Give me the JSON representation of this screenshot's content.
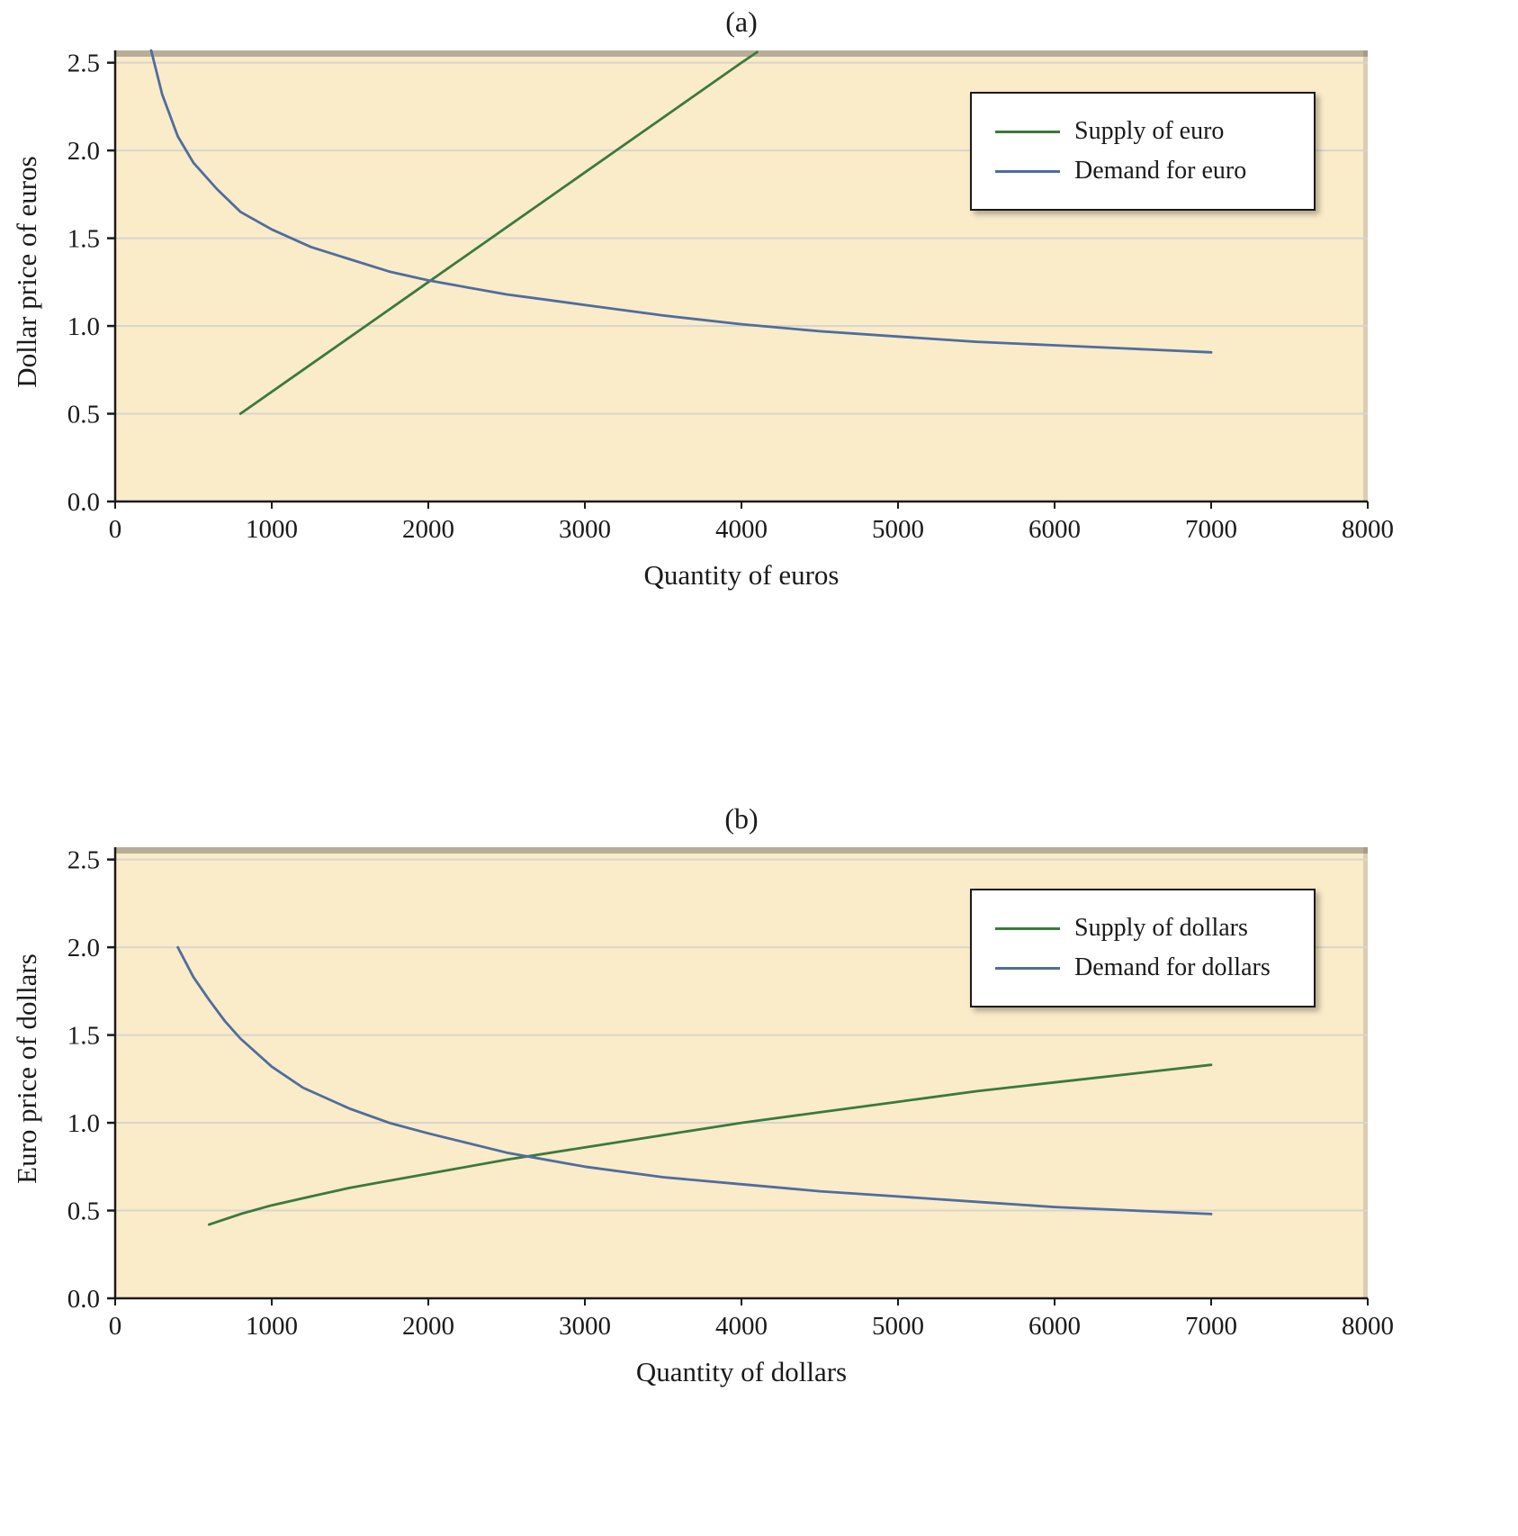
{
  "colors": {
    "supply_green": "#3A7A3C",
    "demand_blue": "#4F6D9E",
    "plot_background": "#FAEBC9",
    "grid": "#D9D5CC",
    "axis": "#1a1a1a"
  },
  "chart_data": [
    {
      "type": "line",
      "title": "(a)",
      "xlabel": "Quantity of euros",
      "ylabel": "Dollar price of euros",
      "xlim": [
        0,
        8000
      ],
      "ylim": [
        0,
        2.57
      ],
      "xticks": [
        0,
        1000,
        2000,
        3000,
        4000,
        5000,
        6000,
        7000,
        8000
      ],
      "xtick_labels": [
        "0",
        "1000",
        "2000",
        "3000",
        "4000",
        "5000",
        "6000",
        "7000",
        "8000"
      ],
      "yticks": [
        0,
        0.5,
        1.0,
        1.5,
        2.0,
        2.5
      ],
      "ytick_labels": [
        "0.0",
        "0.5",
        "1.0",
        "1.5",
        "2.0",
        "2.5"
      ],
      "grid": "horizontal",
      "legend_position": "top-right",
      "plot_background": "#FAEBC9",
      "grid_color": "#D9D5CC",
      "series": [
        {
          "name": "Supply of euro",
          "color": "#3A7A3C",
          "x": [
            800,
            1200,
            1600,
            2000,
            2400,
            2800,
            3200,
            3600,
            4000,
            4100
          ],
          "y": [
            0.5,
            0.75,
            1.0,
            1.25,
            1.5,
            1.75,
            2.0,
            2.25,
            2.5,
            2.56
          ]
        },
        {
          "name": "Demand for euro",
          "color": "#4F6D9E",
          "x": [
            230,
            300,
            400,
            500,
            650,
            800,
            1000,
            1250,
            1500,
            1750,
            2000,
            2250,
            2500,
            2750,
            3000,
            3500,
            4000,
            4500,
            5000,
            5500,
            6000,
            6500,
            7000
          ],
          "y": [
            2.57,
            2.32,
            2.08,
            1.93,
            1.78,
            1.65,
            1.55,
            1.45,
            1.38,
            1.31,
            1.26,
            1.22,
            1.18,
            1.15,
            1.12,
            1.06,
            1.01,
            0.97,
            0.94,
            0.91,
            0.89,
            0.87,
            0.85
          ]
        }
      ]
    },
    {
      "type": "line",
      "title": "(b)",
      "xlabel": "Quantity of dollars",
      "ylabel": "Euro price of dollars",
      "xlim": [
        0,
        8000
      ],
      "ylim": [
        0,
        2.57
      ],
      "xticks": [
        0,
        1000,
        2000,
        3000,
        4000,
        5000,
        6000,
        7000,
        8000
      ],
      "xtick_labels": [
        "0",
        "1000",
        "2000",
        "3000",
        "4000",
        "5000",
        "6000",
        "7000",
        "8000"
      ],
      "yticks": [
        0,
        0.5,
        1.0,
        1.5,
        2.0,
        2.5
      ],
      "ytick_labels": [
        "0.0",
        "0.5",
        "1.0",
        "1.5",
        "2.0",
        "2.5"
      ],
      "grid": "horizontal",
      "legend_position": "top-right",
      "plot_background": "#FAEBC9",
      "grid_color": "#D9D5CC",
      "series": [
        {
          "name": "Supply of dollars",
          "color": "#3A7A3C",
          "x": [
            600,
            800,
            1000,
            1250,
            1500,
            1750,
            2000,
            2500,
            3000,
            3500,
            4000,
            4500,
            5000,
            5500,
            6000,
            6500,
            7000
          ],
          "y": [
            0.42,
            0.48,
            0.53,
            0.58,
            0.63,
            0.67,
            0.71,
            0.79,
            0.86,
            0.93,
            1.0,
            1.06,
            1.12,
            1.18,
            1.23,
            1.28,
            1.33
          ]
        },
        {
          "name": "Demand for dollars",
          "color": "#4F6D9E",
          "x": [
            400,
            500,
            600,
            700,
            800,
            1000,
            1200,
            1500,
            1750,
            2000,
            2500,
            3000,
            3500,
            4000,
            4500,
            5000,
            5500,
            6000,
            6500,
            7000
          ],
          "y": [
            2.0,
            1.83,
            1.7,
            1.58,
            1.48,
            1.32,
            1.2,
            1.08,
            1.0,
            0.94,
            0.83,
            0.75,
            0.69,
            0.65,
            0.61,
            0.58,
            0.55,
            0.52,
            0.5,
            0.48
          ]
        }
      ]
    }
  ]
}
